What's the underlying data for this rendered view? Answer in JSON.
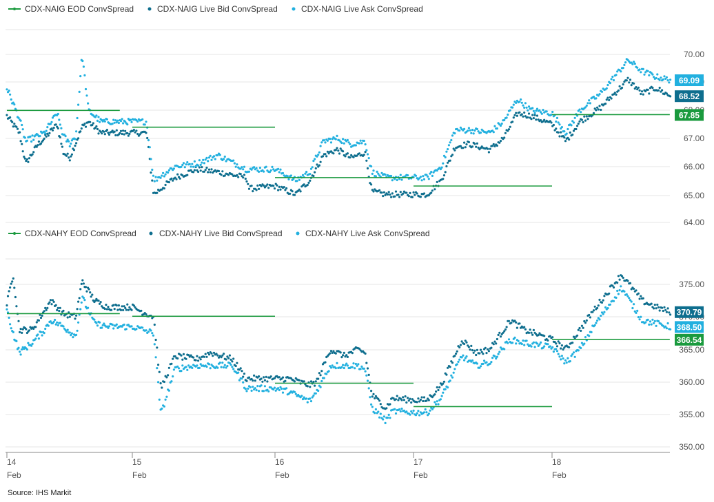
{
  "colors": {
    "eod": "#1a9a3e",
    "bid": "#0e6e8e",
    "ask": "#22b0df",
    "grid": "#e6e6e6",
    "axis": "#888888"
  },
  "x_axis": {
    "ticks": [
      {
        "day": "14",
        "month": "Feb"
      },
      {
        "day": "15",
        "month": "Feb"
      },
      {
        "day": "16",
        "month": "Feb"
      },
      {
        "day": "17",
        "month": "Feb"
      },
      {
        "day": "18",
        "month": "Feb"
      }
    ]
  },
  "source": "Source: IHS  Markit",
  "chart_data": [
    {
      "type": "scatter",
      "name_panel": "CDX-NAIG",
      "legend": [
        "CDX-NAIG EOD ConvSpread",
        "CDX-NAIG Live Bid ConvSpread",
        "CDX-NAIG Live Ask ConvSpread"
      ],
      "ylim": [
        64,
        70
      ],
      "yticks": [
        "64.00",
        "65.00",
        "66.00",
        "67.00",
        "68.00",
        "69.00",
        "70.00"
      ],
      "last_values": {
        "ask": "69.09",
        "bid": "68.52",
        "eod": "67.85"
      },
      "eod_segments": [
        {
          "x0": 14.0,
          "x1": 14.9,
          "y": 68.0
        },
        {
          "x0": 15.0,
          "x1": 16.0,
          "y": 67.4
        },
        {
          "x0": 16.0,
          "x1": 17.0,
          "y": 65.6
        },
        {
          "x0": 17.0,
          "x1": 18.0,
          "y": 65.3
        },
        {
          "x0": 18.0,
          "x1": 18.85,
          "y": 67.85
        }
      ],
      "bid_anchors": [
        [
          14.0,
          67.8
        ],
        [
          14.1,
          67.2
        ],
        [
          14.15,
          66.1
        ],
        [
          14.25,
          66.8
        ],
        [
          14.3,
          67.0
        ],
        [
          14.4,
          67.5
        ],
        [
          14.45,
          66.5
        ],
        [
          14.5,
          66.3
        ],
        [
          14.6,
          67.4
        ],
        [
          14.65,
          67.6
        ],
        [
          14.75,
          67.2
        ],
        [
          14.9,
          67.2
        ],
        [
          15.1,
          67.2
        ],
        [
          15.15,
          65.0
        ],
        [
          15.3,
          65.6
        ],
        [
          15.45,
          65.9
        ],
        [
          15.6,
          65.8
        ],
        [
          15.8,
          65.6
        ],
        [
          15.82,
          65.2
        ],
        [
          16.0,
          65.3
        ],
        [
          16.15,
          65.0
        ],
        [
          16.25,
          65.5
        ],
        [
          16.35,
          66.4
        ],
        [
          16.45,
          66.6
        ],
        [
          16.55,
          66.3
        ],
        [
          16.65,
          66.5
        ],
        [
          16.7,
          65.1
        ],
        [
          16.8,
          65.0
        ],
        [
          17.0,
          65.0
        ],
        [
          17.1,
          65.0
        ],
        [
          17.2,
          65.5
        ],
        [
          17.3,
          66.7
        ],
        [
          17.4,
          66.8
        ],
        [
          17.55,
          66.6
        ],
        [
          17.65,
          67.0
        ],
        [
          17.75,
          67.9
        ],
        [
          17.85,
          67.8
        ],
        [
          18.0,
          67.5
        ],
        [
          18.1,
          66.9
        ],
        [
          18.2,
          67.6
        ],
        [
          18.35,
          68.1
        ],
        [
          18.55,
          69.1
        ],
        [
          18.65,
          68.6
        ],
        [
          18.75,
          68.8
        ],
        [
          18.85,
          68.52
        ]
      ],
      "ask_anchors": [
        [
          14.0,
          68.8
        ],
        [
          14.1,
          67.7
        ],
        [
          14.15,
          66.9
        ],
        [
          14.25,
          67.1
        ],
        [
          14.3,
          67.2
        ],
        [
          14.4,
          67.9
        ],
        [
          14.45,
          67.1
        ],
        [
          14.5,
          66.8
        ],
        [
          14.55,
          67.1
        ],
        [
          14.6,
          70.0
        ],
        [
          14.65,
          68.0
        ],
        [
          14.75,
          67.6
        ],
        [
          14.9,
          67.6
        ],
        [
          15.1,
          67.6
        ],
        [
          15.15,
          65.5
        ],
        [
          15.3,
          66.0
        ],
        [
          15.45,
          66.1
        ],
        [
          15.6,
          66.4
        ],
        [
          15.8,
          65.9
        ],
        [
          16.0,
          65.9
        ],
        [
          16.15,
          65.5
        ],
        [
          16.25,
          65.8
        ],
        [
          16.35,
          66.9
        ],
        [
          16.45,
          67.0
        ],
        [
          16.55,
          66.8
        ],
        [
          16.65,
          66.9
        ],
        [
          16.7,
          65.8
        ],
        [
          16.8,
          65.6
        ],
        [
          17.0,
          65.6
        ],
        [
          17.1,
          65.6
        ],
        [
          17.2,
          66.0
        ],
        [
          17.3,
          67.3
        ],
        [
          17.4,
          67.3
        ],
        [
          17.55,
          67.2
        ],
        [
          17.65,
          67.6
        ],
        [
          17.75,
          68.4
        ],
        [
          17.85,
          68.0
        ],
        [
          18.0,
          67.9
        ],
        [
          18.1,
          67.2
        ],
        [
          18.2,
          68.0
        ],
        [
          18.35,
          68.6
        ],
        [
          18.55,
          69.8
        ],
        [
          18.65,
          69.4
        ],
        [
          18.75,
          69.2
        ],
        [
          18.85,
          69.09
        ]
      ]
    },
    {
      "type": "scatter",
      "name_panel": "CDX-NAHY",
      "legend": [
        "CDX-NAHY EOD ConvSpread",
        "CDX-NAHY Live Bid ConvSpread",
        "CDX-NAHY Live Ask ConvSpread"
      ],
      "ylim": [
        350,
        377
      ],
      "yticks": [
        "350.00",
        "355.00",
        "360.00",
        "365.00",
        "370.00",
        "375.00"
      ],
      "last_values": {
        "bid": "370.79",
        "ask": "368.50",
        "eod": "366.54"
      },
      "eod_segments": [
        {
          "x0": 14.0,
          "x1": 14.9,
          "y": 370.5
        },
        {
          "x0": 15.0,
          "x1": 16.0,
          "y": 370.1
        },
        {
          "x0": 16.0,
          "x1": 17.0,
          "y": 359.8
        },
        {
          "x0": 17.0,
          "x1": 18.0,
          "y": 356.2
        },
        {
          "x0": 18.0,
          "x1": 18.85,
          "y": 366.54
        }
      ],
      "bid_anchors": [
        [
          14.0,
          372.0
        ],
        [
          14.05,
          376.5
        ],
        [
          14.1,
          368.0
        ],
        [
          14.2,
          368.0
        ],
        [
          14.3,
          371.0
        ],
        [
          14.35,
          372.5
        ],
        [
          14.45,
          370.5
        ],
        [
          14.55,
          370.0
        ],
        [
          14.6,
          375.5
        ],
        [
          14.7,
          372.5
        ],
        [
          14.8,
          371.5
        ],
        [
          15.0,
          371.5
        ],
        [
          15.15,
          370.0
        ],
        [
          15.2,
          359.0
        ],
        [
          15.3,
          364.0
        ],
        [
          15.45,
          363.5
        ],
        [
          15.55,
          364.5
        ],
        [
          15.7,
          363.5
        ],
        [
          15.8,
          360.5
        ],
        [
          16.0,
          360.5
        ],
        [
          16.1,
          360.5
        ],
        [
          16.25,
          359.5
        ],
        [
          16.3,
          360.0
        ],
        [
          16.4,
          365.0
        ],
        [
          16.5,
          364.0
        ],
        [
          16.6,
          365.0
        ],
        [
          16.65,
          364.5
        ],
        [
          16.7,
          358.0
        ],
        [
          16.8,
          356.0
        ],
        [
          16.85,
          357.5
        ],
        [
          17.0,
          357.2
        ],
        [
          17.1,
          357.2
        ],
        [
          17.2,
          359.5
        ],
        [
          17.35,
          366.5
        ],
        [
          17.45,
          364.5
        ],
        [
          17.55,
          365.0
        ],
        [
          17.7,
          369.5
        ],
        [
          17.8,
          368.0
        ],
        [
          18.0,
          366.5
        ],
        [
          18.1,
          365.0
        ],
        [
          18.2,
          368.0
        ],
        [
          18.3,
          371.0
        ],
        [
          18.5,
          376.5
        ],
        [
          18.65,
          372.5
        ],
        [
          18.75,
          371.5
        ],
        [
          18.85,
          370.79
        ]
      ],
      "ask_anchors": [
        [
          14.0,
          371.0
        ],
        [
          14.05,
          367.5
        ],
        [
          14.1,
          364.5
        ],
        [
          14.2,
          366.0
        ],
        [
          14.3,
          368.0
        ],
        [
          14.35,
          369.5
        ],
        [
          14.45,
          368.5
        ],
        [
          14.55,
          367.0
        ],
        [
          14.6,
          373.0
        ],
        [
          14.7,
          369.0
        ],
        [
          14.8,
          368.5
        ],
        [
          15.0,
          368.5
        ],
        [
          15.15,
          367.5
        ],
        [
          15.2,
          355.0
        ],
        [
          15.3,
          362.0
        ],
        [
          15.45,
          362.5
        ],
        [
          15.55,
          362.5
        ],
        [
          15.7,
          362.5
        ],
        [
          15.8,
          359.0
        ],
        [
          16.0,
          359.0
        ],
        [
          16.1,
          358.5
        ],
        [
          16.25,
          357.0
        ],
        [
          16.3,
          358.5
        ],
        [
          16.4,
          362.5
        ],
        [
          16.5,
          362.5
        ],
        [
          16.6,
          362.5
        ],
        [
          16.65,
          362.0
        ],
        [
          16.7,
          356.0
        ],
        [
          16.8,
          354.0
        ],
        [
          16.85,
          355.5
        ],
        [
          17.0,
          355.3
        ],
        [
          17.1,
          355.3
        ],
        [
          17.2,
          357.5
        ],
        [
          17.35,
          364.0
        ],
        [
          17.45,
          362.5
        ],
        [
          17.55,
          363.0
        ],
        [
          17.7,
          366.5
        ],
        [
          17.8,
          366.0
        ],
        [
          18.0,
          365.3
        ],
        [
          18.1,
          363.0
        ],
        [
          18.2,
          365.0
        ],
        [
          18.3,
          368.5
        ],
        [
          18.5,
          374.5
        ],
        [
          18.65,
          369.5
        ],
        [
          18.75,
          369.0
        ],
        [
          18.85,
          368.5
        ]
      ]
    }
  ]
}
